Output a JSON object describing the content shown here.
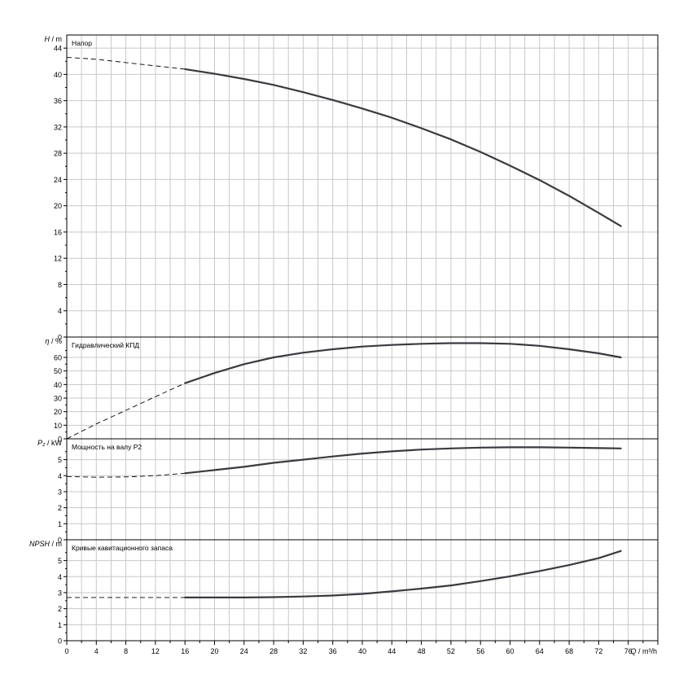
{
  "chart_data": {
    "type": "line",
    "x_axis": {
      "label_italic": "Q",
      "label_unit": " / m³/h",
      "range": [
        0,
        80
      ],
      "major_ticks": [
        0,
        4,
        8,
        12,
        16,
        20,
        24,
        28,
        32,
        36,
        40,
        44,
        48,
        52,
        56,
        60,
        64,
        68,
        72,
        76
      ]
    },
    "grid": true,
    "panels": [
      {
        "id": "head",
        "title": "Напор",
        "ylabel_italic": "H",
        "ylabel_unit": " / m",
        "ylim": [
          0,
          46
        ],
        "yticks": [
          0,
          4,
          8,
          12,
          16,
          20,
          24,
          28,
          32,
          36,
          40,
          44
        ],
        "dashed": {
          "x": [
            0,
            4,
            8,
            12,
            16
          ],
          "y": [
            42.6,
            42.3,
            41.8,
            41.3,
            40.8
          ]
        },
        "solid": {
          "x": [
            16,
            20,
            24,
            28,
            32,
            36,
            40,
            44,
            48,
            52,
            56,
            60,
            64,
            68,
            72,
            75
          ],
          "y": [
            40.8,
            40.1,
            39.3,
            38.4,
            37.3,
            36.1,
            34.8,
            33.4,
            31.8,
            30.1,
            28.2,
            26.1,
            23.9,
            21.5,
            18.9,
            16.9
          ]
        }
      },
      {
        "id": "efficiency",
        "title": "Гидравлический КПД",
        "ylabel_italic": "η",
        "ylabel_unit": " / %",
        "ylim": [
          0,
          75
        ],
        "yticks": [
          0,
          10,
          20,
          30,
          40,
          50,
          60
        ],
        "dashed": {
          "x": [
            0,
            4,
            8,
            12,
            16
          ],
          "y": [
            0,
            11,
            21,
            31,
            41
          ]
        },
        "solid": {
          "x": [
            16,
            20,
            24,
            28,
            32,
            36,
            40,
            44,
            48,
            52,
            56,
            60,
            64,
            68,
            72,
            75
          ],
          "y": [
            41,
            48.5,
            55,
            60,
            63.5,
            66,
            68,
            69.2,
            70,
            70.5,
            70.5,
            70,
            68.5,
            66,
            63,
            60
          ]
        }
      },
      {
        "id": "power",
        "title": "Мощность на валу P2",
        "ylabel_italic": "P₂",
        "ylabel_unit": " / kW",
        "ylim": [
          0,
          6.3
        ],
        "yticks": [
          0,
          1,
          2,
          3,
          4,
          5
        ],
        "dashed": {
          "x": [
            0,
            4,
            8,
            12,
            16
          ],
          "y": [
            3.95,
            3.9,
            3.92,
            4.0,
            4.15
          ]
        },
        "solid": {
          "x": [
            16,
            20,
            24,
            28,
            32,
            36,
            40,
            44,
            48,
            52,
            56,
            60,
            64,
            68,
            72,
            75
          ],
          "y": [
            4.15,
            4.35,
            4.55,
            4.8,
            5.0,
            5.2,
            5.38,
            5.52,
            5.63,
            5.7,
            5.75,
            5.77,
            5.77,
            5.75,
            5.72,
            5.7
          ]
        }
      },
      {
        "id": "npsh",
        "title": "Кривые кавитационного запаса",
        "ylabel_italic": "NPSH",
        "ylabel_unit": " / m",
        "ylim": [
          0,
          6.3
        ],
        "yticks": [
          0,
          1,
          2,
          3,
          4,
          5
        ],
        "dashed": {
          "x": [
            0,
            16
          ],
          "y": [
            2.7,
            2.7
          ]
        },
        "solid": {
          "x": [
            16,
            20,
            24,
            28,
            32,
            36,
            40,
            44,
            48,
            52,
            56,
            60,
            64,
            68,
            72,
            75
          ],
          "y": [
            2.7,
            2.7,
            2.7,
            2.72,
            2.76,
            2.82,
            2.92,
            3.08,
            3.25,
            3.45,
            3.72,
            4.02,
            4.35,
            4.72,
            5.15,
            5.6
          ]
        }
      }
    ],
    "colors": {
      "curve": "#3a3a40",
      "grid": "#c8c8c8",
      "frame": "#000000"
    }
  }
}
